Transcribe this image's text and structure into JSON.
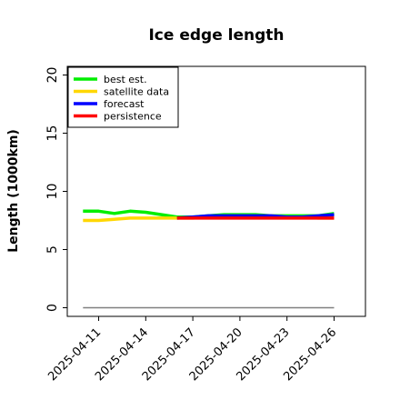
{
  "chart_data": {
    "type": "line",
    "title": "Ice edge length",
    "xlabel": "",
    "ylabel": "Length (1000km)",
    "ylim": [
      0,
      21
    ],
    "yticks": [
      0,
      5,
      10,
      15,
      20
    ],
    "xlim": [
      "2025-04-09",
      "2025-04-28"
    ],
    "xticks": [
      "2025-04-11",
      "2025-04-14",
      "2025-04-17",
      "2025-04-20",
      "2025-04-23",
      "2025-04-26"
    ],
    "highlighted_xtick": "2025-04-17",
    "highlight_color": "#228b22",
    "legend_position": "top-left",
    "grid": false,
    "series": [
      {
        "name": "best est.",
        "color": "#00ee00",
        "x": [
          "2025-04-10",
          "2025-04-11",
          "2025-04-12",
          "2025-04-13",
          "2025-04-14",
          "2025-04-15",
          "2025-04-16",
          "2025-04-17",
          "2025-04-18",
          "2025-04-19",
          "2025-04-20",
          "2025-04-21",
          "2025-04-22",
          "2025-04-23",
          "2025-04-24",
          "2025-04-25",
          "2025-04-26"
        ],
        "y": [
          8.3,
          8.3,
          8.1,
          8.3,
          8.2,
          8.0,
          7.8,
          7.8,
          7.9,
          8.0,
          8.0,
          8.0,
          7.9,
          7.9,
          7.9,
          7.9,
          8.1
        ]
      },
      {
        "name": "satellite data",
        "color": "#ffd700",
        "x": [
          "2025-04-10",
          "2025-04-11",
          "2025-04-12",
          "2025-04-13",
          "2025-04-14",
          "2025-04-15",
          "2025-04-16",
          "2025-04-17",
          "2025-04-18",
          "2025-04-19",
          "2025-04-20",
          "2025-04-21",
          "2025-04-22",
          "2025-04-23",
          "2025-04-24",
          "2025-04-25",
          "2025-04-26"
        ],
        "y": [
          7.5,
          7.5,
          7.6,
          7.7,
          7.7,
          7.7,
          7.7,
          7.7,
          7.8,
          7.9,
          7.9,
          7.9,
          7.9,
          7.8,
          7.8,
          7.7,
          7.7
        ]
      },
      {
        "name": "forecast",
        "color": "#0000ff",
        "x": [
          "2025-04-16",
          "2025-04-17",
          "2025-04-18",
          "2025-04-19",
          "2025-04-20",
          "2025-04-21",
          "2025-04-22",
          "2025-04-23",
          "2025-04-24",
          "2025-04-25",
          "2025-04-26"
        ],
        "y": [
          7.7,
          7.8,
          7.9,
          7.9,
          7.9,
          7.9,
          7.9,
          7.8,
          7.8,
          7.9,
          8.0
        ]
      },
      {
        "name": "persistence",
        "color": "#ff0000",
        "x": [
          "2025-04-16",
          "2025-04-17",
          "2025-04-18",
          "2025-04-19",
          "2025-04-20",
          "2025-04-21",
          "2025-04-22",
          "2025-04-23",
          "2025-04-24",
          "2025-04-25",
          "2025-04-26"
        ],
        "y": [
          7.7,
          7.7,
          7.7,
          7.7,
          7.7,
          7.7,
          7.7,
          7.7,
          7.7,
          7.7,
          7.7
        ]
      },
      {
        "name": "",
        "color": "#808080",
        "x": [
          "2025-04-10",
          "2025-04-26"
        ],
        "y": [
          0,
          0
        ]
      }
    ]
  }
}
